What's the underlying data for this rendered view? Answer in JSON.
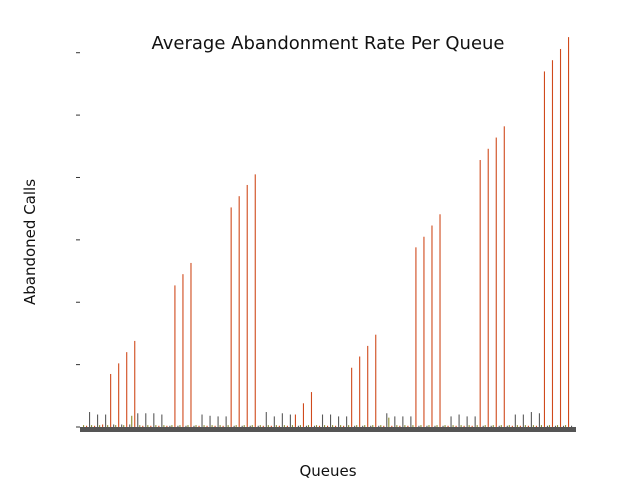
{
  "chart_data": {
    "type": "bar",
    "title": "Average Abandonment Rate Per Queue",
    "xlabel": "Queues",
    "ylabel": "Abandoned Calls",
    "ylim": [
      0,
      6.3
    ],
    "y_ticks": [
      0,
      1,
      2,
      3,
      4,
      5,
      6
    ],
    "show_x_tick_labels": false,
    "show_y_tick_labels": false,
    "grid": false,
    "colors": {
      "orange": "#d04a1c",
      "gray": "#5a5a5a",
      "olive": "#8a8a2a",
      "axis": "#555555"
    },
    "series": [
      {
        "color_key": "orange",
        "values": [
          0.02,
          0.02,
          0.04,
          0.85,
          1.02,
          1.2,
          1.38,
          0.02,
          0.02,
          0.02,
          0.02,
          2.27,
          2.45,
          2.63,
          0.02,
          0.02,
          0.02,
          0.02,
          3.52,
          3.7,
          3.88,
          4.05,
          0.02,
          0.02,
          0.02,
          0.02,
          0.2,
          0.38,
          0.56,
          0.02,
          0.02,
          0.02,
          0.02,
          0.95,
          1.13,
          1.3,
          1.48,
          0.02,
          0.02,
          0.02,
          0.02,
          2.88,
          3.05,
          3.23,
          3.41,
          0.02,
          0.02,
          0.02,
          0.02,
          4.28,
          4.46,
          4.64,
          4.82,
          0.02,
          0.02,
          0.02,
          0.02,
          5.7,
          5.88,
          6.06,
          6.25
        ]
      },
      {
        "color_key": "gray",
        "values": [
          0.24,
          0.2,
          0.2,
          0.04,
          0.04,
          0.04,
          0.22,
          0.22,
          0.22,
          0.2,
          0.02,
          0.02,
          0.02,
          0.02,
          0.2,
          0.18,
          0.17,
          0.17,
          0.02,
          0.02,
          0.02,
          0.02,
          0.24,
          0.17,
          0.22,
          0.2,
          0.02,
          0.02,
          0.02,
          0.2,
          0.2,
          0.17,
          0.17,
          0.02,
          0.02,
          0.02,
          0.02,
          0.22,
          0.17,
          0.17,
          0.17,
          0.02,
          0.02,
          0.02,
          0.02,
          0.17,
          0.2,
          0.17,
          0.17,
          0.02,
          0.02,
          0.02,
          0.02,
          0.2,
          0.2,
          0.24,
          0.22,
          0.02,
          0.02,
          0.02,
          0.02
        ]
      },
      {
        "color_key": "olive",
        "values": [
          0.03,
          0.03,
          0.03,
          0.03,
          0.03,
          0.03,
          0.18,
          0.03,
          0.03,
          0.03,
          0.03,
          0.03,
          0.03,
          0.03,
          0.03,
          0.03,
          0.03,
          0.03,
          0.03,
          0.03,
          0.03,
          0.03,
          0.03,
          0.03,
          0.03,
          0.03,
          0.03,
          0.03,
          0.03,
          0.03,
          0.03,
          0.03,
          0.03,
          0.03,
          0.03,
          0.03,
          0.03,
          0.03,
          0.15,
          0.03,
          0.03,
          0.03,
          0.03,
          0.03,
          0.03,
          0.03,
          0.03,
          0.03,
          0.03,
          0.03,
          0.03,
          0.03,
          0.03,
          0.03,
          0.03,
          0.03,
          0.03,
          0.03,
          0.03,
          0.03,
          0.03
        ]
      }
    ]
  }
}
